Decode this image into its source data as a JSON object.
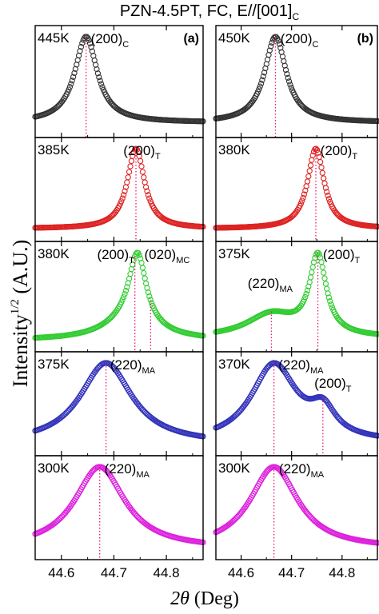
{
  "figure": {
    "title": "PZN-4.5PT, FC, E//[001]",
    "title_sub": "C",
    "ylabel_main": "Intensity",
    "ylabel_sup": "1/2",
    "ylabel_unit": " (A.U.)",
    "xlabel_theta": "2θ",
    "xlabel_unit": " (Deg)",
    "column_labels": [
      "(a)",
      "(b)"
    ]
  },
  "chart_data": {
    "type": "scatter",
    "xlim": [
      44.55,
      44.87
    ],
    "xticks": [
      "44.6",
      "44.7",
      "44.8"
    ],
    "xtick_values": [
      44.6,
      44.7,
      44.8
    ],
    "columns": [
      {
        "label": "(a)",
        "panels": [
          {
            "temperature": "445K",
            "color": "#333333",
            "peaks": [
              {
                "center": 44.647,
                "width": 0.026,
                "amp": 1.0
              }
            ],
            "baseline": 0.1,
            "annotations": [
              {
                "text": "(200)",
                "sub": "C",
                "x": 44.656
              }
            ],
            "markers": [
              44.647
            ]
          },
          {
            "temperature": "385K",
            "color": "#dd2222",
            "peaks": [
              {
                "center": 44.742,
                "width": 0.02,
                "amp": 1.0
              }
            ],
            "baseline": 0.08,
            "annotations": [
              {
                "text": "(200)",
                "sub": "T",
                "x": 44.718
              }
            ],
            "markers": [
              44.742
            ]
          },
          {
            "temperature": "380K",
            "color": "#33cc33",
            "peaks": [
              {
                "center": 44.745,
                "width": 0.02,
                "amp": 0.85
              },
              {
                "center": 44.73,
                "width": 0.06,
                "amp": 0.22
              }
            ],
            "baseline": 0.06,
            "annotations": [
              {
                "text": "(200)",
                "sub": "T",
                "x": 44.668
              },
              {
                "text": "(020)",
                "sub": "MC",
                "x": 44.758
              }
            ],
            "markers": [
              44.74,
              44.77
            ]
          },
          {
            "temperature": "375K",
            "color": "#3333bb",
            "peaks": [
              {
                "center": 44.685,
                "width": 0.06,
                "amp": 0.95
              }
            ],
            "baseline": 0.06,
            "annotations": [
              {
                "text": "(220)",
                "sub": "MA",
                "x": 44.693
              }
            ],
            "markers": [
              44.685
            ]
          },
          {
            "temperature": "300K",
            "color": "#dd22dd",
            "peaks": [
              {
                "center": 44.673,
                "width": 0.058,
                "amp": 0.95
              }
            ],
            "baseline": 0.05,
            "annotations": [
              {
                "text": "(220)",
                "sub": "MA",
                "x": 44.682
              }
            ],
            "markers": [
              44.673
            ]
          }
        ]
      },
      {
        "label": "(b)",
        "panels": [
          {
            "temperature": "450K",
            "color": "#333333",
            "peaks": [
              {
                "center": 44.668,
                "width": 0.026,
                "amp": 1.0
              }
            ],
            "baseline": 0.1,
            "annotations": [
              {
                "text": "(200)",
                "sub": "C",
                "x": 44.678
              }
            ],
            "markers": [
              44.668
            ]
          },
          {
            "temperature": "380K",
            "color": "#dd2222",
            "peaks": [
              {
                "center": 44.748,
                "width": 0.02,
                "amp": 1.0
              }
            ],
            "baseline": 0.08,
            "annotations": [
              {
                "text": "(200)",
                "sub": "T",
                "x": 44.757
              }
            ],
            "markers": [
              44.748
            ]
          },
          {
            "temperature": "375K",
            "color": "#33cc33",
            "peaks": [
              {
                "center": 44.752,
                "width": 0.02,
                "amp": 0.85
              },
              {
                "center": 44.66,
                "width": 0.06,
                "amp": 0.25
              }
            ],
            "baseline": 0.08,
            "annotations": [
              {
                "text": "(220)",
                "sub": "MA",
                "x": 44.613
              },
              {
                "text": "(200)",
                "sub": "T",
                "x": 44.762
              }
            ],
            "markers": [
              44.66,
              44.752
            ]
          },
          {
            "temperature": "370K",
            "color": "#3333bb",
            "peaks": [
              {
                "center": 44.665,
                "width": 0.055,
                "amp": 0.95
              },
              {
                "center": 44.762,
                "width": 0.03,
                "amp": 0.32
              }
            ],
            "baseline": 0.08,
            "annotations": [
              {
                "text": "(220)",
                "sub": "MA",
                "x": 44.674
              },
              {
                "text": "(200)",
                "sub": "T",
                "x": 44.745
              }
            ],
            "markers": [
              44.665,
              44.762
            ]
          },
          {
            "temperature": "300K",
            "color": "#dd22dd",
            "peaks": [
              {
                "center": 44.665,
                "width": 0.058,
                "amp": 0.95
              }
            ],
            "baseline": 0.05,
            "annotations": [
              {
                "text": "(220)",
                "sub": "MA",
                "x": 44.675
              }
            ],
            "markers": [
              44.665
            ]
          }
        ]
      }
    ]
  }
}
